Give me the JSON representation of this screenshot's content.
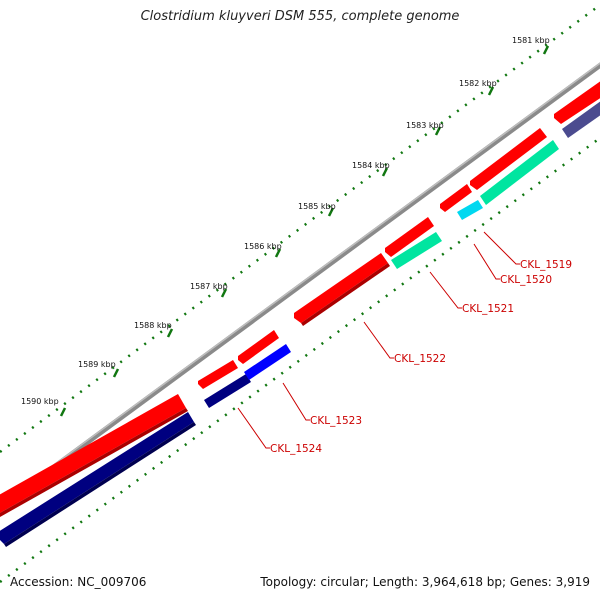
{
  "title": "Clostridium kluyveri DSM 555, complete genome",
  "footer": {
    "accession": "Accession: NC_009706",
    "summary": "Topology: circular; Length: 3,964,618 bp; Genes: 3,919"
  },
  "colors": {
    "backbone": "#8a8a8a",
    "forward_gene": "#ff0000",
    "reverse_gene": "#0000ff",
    "reverse_gene_dark": "#000080",
    "rna_gene": "#00e5a0",
    "rna_small": "#00d8f0",
    "slate_gene": "#4b4b8f",
    "tick": "#117711",
    "label": "#cc0000"
  },
  "ticks": [
    {
      "label": "1581 kbp"
    },
    {
      "label": "1582 kbp"
    },
    {
      "label": "1583 kbp"
    },
    {
      "label": "1584 kbp"
    },
    {
      "label": "1585 kbp"
    },
    {
      "label": "1586 kbp"
    },
    {
      "label": "1587 kbp"
    },
    {
      "label": "1588 kbp"
    },
    {
      "label": "1589 kbp"
    },
    {
      "label": "1590 kbp"
    }
  ],
  "gene_labels": [
    "CKL_1519",
    "CKL_1520",
    "CKL_1521",
    "CKL_1522",
    "CKL_1523",
    "CKL_1524"
  ]
}
